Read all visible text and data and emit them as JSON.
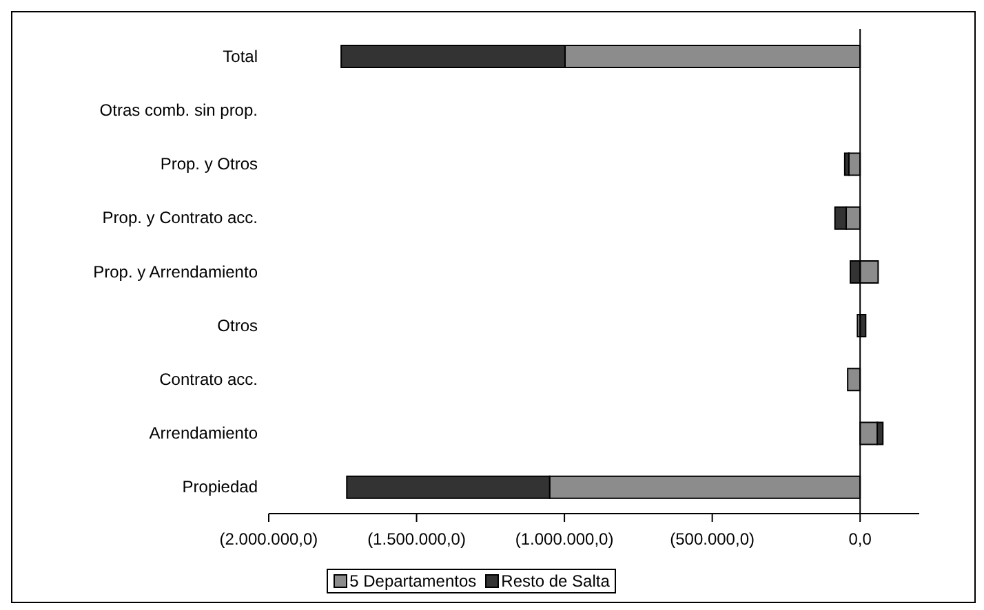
{
  "chart_data": {
    "type": "bar",
    "orientation": "horizontal",
    "stacked": true,
    "categories": [
      "Total",
      "Otras comb. sin prop.",
      "Prop. y Otros",
      "Prop. y Contrato acc.",
      "Prop. y Arrendamiento",
      "Otros",
      "Contrato acc.",
      "Arrendamiento",
      "Propiedad"
    ],
    "series": [
      {
        "name": "5 Departamentos",
        "color": "#8c8c8c",
        "values": [
          -998000,
          0,
          -38000,
          -47000,
          61000,
          -9000,
          -42000,
          58000,
          -1050000
        ]
      },
      {
        "name": "Resto de Salta",
        "color": "#333333",
        "values": [
          -757000,
          0,
          -14000,
          -38000,
          -33000,
          19000,
          0,
          19000,
          -686000
        ]
      }
    ],
    "xlim": [
      -2000000,
      200000
    ],
    "xticks": [
      {
        "value": -2000000,
        "label": "(2.000.000,0)"
      },
      {
        "value": -1500000,
        "label": "(1.500.000,0)"
      },
      {
        "value": -1000000,
        "label": "(1.000.000,0)"
      },
      {
        "value": -500000,
        "label": "(500.000,0)"
      },
      {
        "value": 0,
        "label": "0,0"
      }
    ],
    "legend": "bottom"
  }
}
